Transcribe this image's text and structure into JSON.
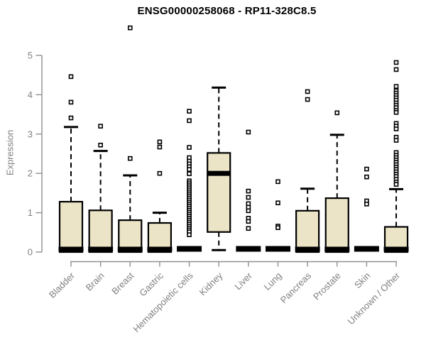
{
  "colors": {
    "box_fill": "#ECE4C6",
    "box_border": "#000000",
    "median": "#000000",
    "whisker": "#000000",
    "outlier_fill": "#FFFFFF",
    "outlier_border": "#000000",
    "axis": "#8F8F8F",
    "tick_label": "#808080",
    "title": "#000000",
    "background": "#FFFFFF"
  },
  "chart_data": {
    "type": "boxplot",
    "title": "ENSG00000258068 - RP11-328C8.5",
    "xlabel": "",
    "ylabel": "Expression",
    "ylim": [
      0,
      5
    ],
    "yticks": [
      0,
      1,
      2,
      3,
      4,
      5
    ],
    "grid": false,
    "legend": "none",
    "boxes": [
      {
        "label": "Bladder",
        "q1": 0,
        "median": 0,
        "q3": 1.28,
        "whisker_low": 0,
        "whisker_high": 3.18,
        "outliers": [
          4.46,
          3.81,
          3.41
        ]
      },
      {
        "label": "Brain",
        "q1": 0,
        "median": 0,
        "q3": 1.06,
        "whisker_low": 0,
        "whisker_high": 2.57,
        "outliers": [
          3.2,
          2.72
        ]
      },
      {
        "label": "Breast",
        "q1": 0,
        "median": 0,
        "q3": 0.81,
        "whisker_low": 0,
        "whisker_high": 1.95,
        "outliers": [
          5.7,
          2.38
        ]
      },
      {
        "label": "Gastric",
        "q1": 0,
        "median": 0,
        "q3": 0.74,
        "whisker_low": 0,
        "whisker_high": 1.0,
        "outliers": [
          2.8,
          2.67,
          2.0
        ]
      },
      {
        "label": "Hematopoietic cells",
        "q1": 0,
        "median": 0,
        "q3": 0,
        "whisker_low": 0,
        "whisker_high": 0,
        "outliers": [
          3.58,
          3.34,
          2.66,
          2.4,
          2.31,
          2.24,
          2.17,
          2.1,
          1.99,
          1.81,
          1.76,
          1.71,
          1.66,
          1.61,
          1.56,
          1.51,
          1.46,
          1.41,
          1.36,
          1.31,
          1.26,
          1.21,
          1.16,
          1.11,
          1.06,
          1.01,
          0.96,
          0.91,
          0.86,
          0.81,
          0.76,
          0.71,
          0.66,
          0.61,
          0.56,
          0.51,
          0.44
        ]
      },
      {
        "label": "Kidney",
        "q1": 0.51,
        "median": 2.0,
        "q3": 2.52,
        "whisker_low": 0.05,
        "whisker_high": 4.18,
        "outliers": []
      },
      {
        "label": "Liver",
        "q1": 0,
        "median": 0,
        "q3": 0,
        "whisker_low": 0,
        "whisker_high": 0,
        "outliers": [
          3.05,
          1.55,
          1.39,
          1.23,
          1.14,
          1.05,
          0.86,
          0.78,
          0.6
        ]
      },
      {
        "label": "Lung",
        "q1": 0,
        "median": 0,
        "q3": 0,
        "whisker_low": 0,
        "whisker_high": 0,
        "outliers": [
          1.79,
          1.25,
          0.66,
          0.62
        ]
      },
      {
        "label": "Pancreas",
        "q1": 0,
        "median": 0,
        "q3": 1.05,
        "whisker_low": 0,
        "whisker_high": 1.61,
        "outliers": [
          4.08,
          3.88
        ]
      },
      {
        "label": "Prostate",
        "q1": 0,
        "median": 0,
        "q3": 1.37,
        "whisker_low": 0,
        "whisker_high": 2.98,
        "outliers": [
          3.54
        ]
      },
      {
        "label": "Skin",
        "q1": 0,
        "median": 0,
        "q3": 0,
        "whisker_low": 0,
        "whisker_high": 0,
        "outliers": [
          2.11,
          1.91,
          1.3,
          1.22
        ]
      },
      {
        "label": "Unknown / Other",
        "q1": 0,
        "median": 0,
        "q3": 0.64,
        "whisker_low": 0,
        "whisker_high": 1.6,
        "outliers": [
          4.82,
          4.64,
          4.21,
          4.1,
          4.04,
          3.98,
          3.92,
          3.86,
          3.79,
          3.73,
          3.67,
          3.6,
          3.55,
          3.27,
          3.2,
          3.13,
          2.92,
          2.84,
          2.53,
          2.46,
          2.4,
          2.34,
          2.28,
          2.22,
          2.16,
          2.1,
          2.04,
          1.98,
          1.92,
          1.85,
          1.78,
          1.72
        ]
      }
    ]
  }
}
